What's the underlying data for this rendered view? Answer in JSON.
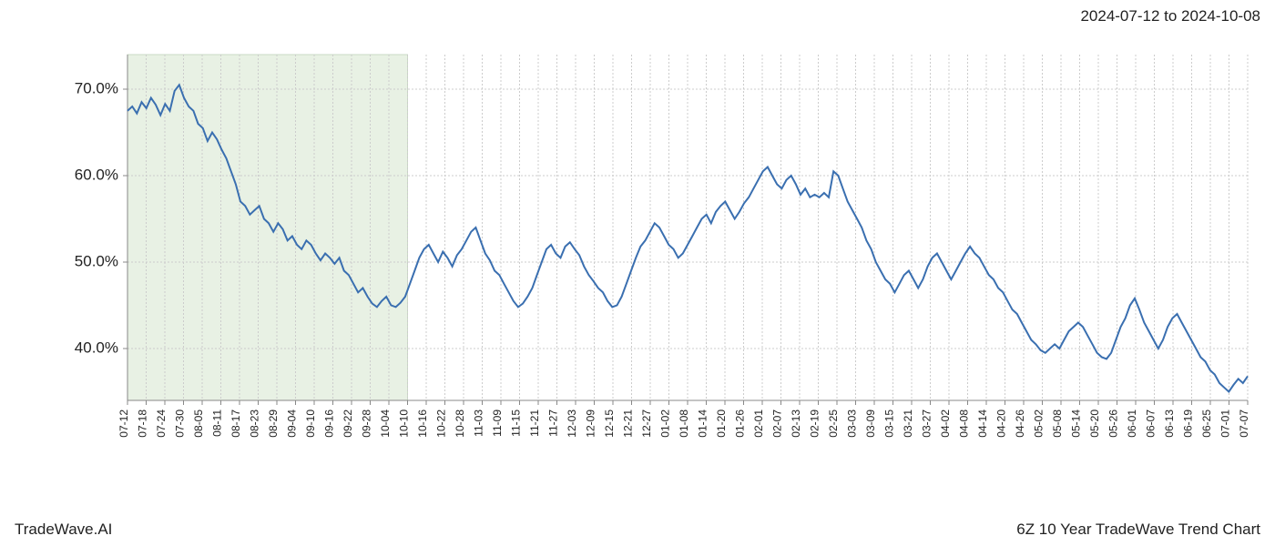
{
  "header": {
    "date_range": "2024-07-12 to 2024-10-08"
  },
  "footer": {
    "brand": "TradeWave.AI",
    "chart_title": "6Z 10 Year TradeWave Trend Chart"
  },
  "chart": {
    "type": "line",
    "background_color": "#ffffff",
    "grid_color": "#cccccc",
    "line_color": "#3a6fb0",
    "line_width": 2,
    "highlight_band_color": "#d9e9d3",
    "highlight_band_border": "#a8c49e",
    "highlight_start_index": 0,
    "highlight_end_index": 15,
    "y_axis": {
      "min": 34,
      "max": 74,
      "ticks": [
        40.0,
        50.0,
        60.0,
        70.0
      ],
      "tick_labels": [
        "40.0%",
        "50.0%",
        "60.0%",
        "70.0%"
      ],
      "label_fontsize": 17
    },
    "x_axis": {
      "labels": [
        "07-12",
        "07-18",
        "07-24",
        "07-30",
        "08-05",
        "08-11",
        "08-17",
        "08-23",
        "08-29",
        "09-04",
        "09-10",
        "09-16",
        "09-22",
        "09-28",
        "10-04",
        "10-10",
        "10-16",
        "10-22",
        "10-28",
        "11-03",
        "11-09",
        "11-15",
        "11-21",
        "11-27",
        "12-03",
        "12-09",
        "12-15",
        "12-21",
        "12-27",
        "01-02",
        "01-08",
        "01-14",
        "01-20",
        "01-26",
        "02-01",
        "02-07",
        "02-13",
        "02-19",
        "02-25",
        "03-03",
        "03-09",
        "03-15",
        "03-21",
        "03-27",
        "04-02",
        "04-08",
        "04-14",
        "04-20",
        "04-26",
        "05-02",
        "05-08",
        "05-14",
        "05-20",
        "05-26",
        "06-01",
        "06-07",
        "06-13",
        "06-19",
        "06-25",
        "07-01",
        "07-07"
      ],
      "label_fontsize": 12
    },
    "series": {
      "values": [
        67.5,
        68.0,
        67.2,
        68.5,
        67.8,
        69.0,
        68.2,
        67.0,
        68.3,
        67.5,
        69.8,
        70.5,
        69.0,
        68.0,
        67.5,
        66.0,
        65.5,
        64.0,
        65.0,
        64.2,
        63.0,
        62.0,
        60.5,
        59.0,
        57.0,
        56.5,
        55.5,
        56.0,
        56.5,
        55.0,
        54.5,
        53.5,
        54.5,
        53.8,
        52.5,
        53.0,
        52.0,
        51.5,
        52.5,
        52.0,
        51.0,
        50.2,
        51.0,
        50.5,
        49.8,
        50.5,
        49.0,
        48.5,
        47.5,
        46.5,
        47.0,
        46.0,
        45.2,
        44.8,
        45.5,
        46.0,
        45.0,
        44.8,
        45.3,
        46.0,
        47.5,
        49.0,
        50.5,
        51.5,
        52.0,
        51.0,
        50.0,
        51.2,
        50.5,
        49.5,
        50.8,
        51.5,
        52.5,
        53.5,
        54.0,
        52.5,
        51.0,
        50.2,
        49.0,
        48.5,
        47.5,
        46.5,
        45.5,
        44.8,
        45.2,
        46.0,
        47.0,
        48.5,
        50.0,
        51.5,
        52.0,
        51.0,
        50.5,
        51.8,
        52.3,
        51.5,
        50.8,
        49.5,
        48.5,
        47.8,
        47.0,
        46.5,
        45.5,
        44.8,
        45.0,
        46.0,
        47.5,
        49.0,
        50.5,
        51.8,
        52.5,
        53.5,
        54.5,
        54.0,
        53.0,
        52.0,
        51.5,
        50.5,
        51.0,
        52.0,
        53.0,
        54.0,
        55.0,
        55.5,
        54.5,
        55.8,
        56.5,
        57.0,
        56.0,
        55.0,
        55.8,
        56.8,
        57.5,
        58.5,
        59.5,
        60.5,
        61.0,
        60.0,
        59.0,
        58.5,
        59.5,
        60.0,
        59.0,
        57.8,
        58.5,
        57.5,
        57.8,
        57.5,
        58.0,
        57.5,
        60.5,
        60.0,
        58.5,
        57.0,
        56.0,
        55.0,
        54.0,
        52.5,
        51.5,
        50.0,
        49.0,
        48.0,
        47.5,
        46.5,
        47.5,
        48.5,
        49.0,
        48.0,
        47.0,
        48.0,
        49.5,
        50.5,
        51.0,
        50.0,
        49.0,
        48.0,
        49.0,
        50.0,
        51.0,
        51.8,
        51.0,
        50.5,
        49.5,
        48.5,
        48.0,
        47.0,
        46.5,
        45.5,
        44.5,
        44.0,
        43.0,
        42.0,
        41.0,
        40.5,
        39.8,
        39.5,
        40.0,
        40.5,
        40.0,
        41.0,
        42.0,
        42.5,
        43.0,
        42.5,
        41.5,
        40.5,
        39.5,
        39.0,
        38.8,
        39.5,
        41.0,
        42.5,
        43.5,
        45.0,
        45.8,
        44.5,
        43.0,
        42.0,
        41.0,
        40.0,
        41.0,
        42.5,
        43.5,
        44.0,
        43.0,
        42.0,
        41.0,
        40.0,
        39.0,
        38.5,
        37.5,
        37.0,
        36.0,
        35.5,
        35.0,
        35.8,
        36.5,
        36.0,
        36.8
      ]
    }
  }
}
